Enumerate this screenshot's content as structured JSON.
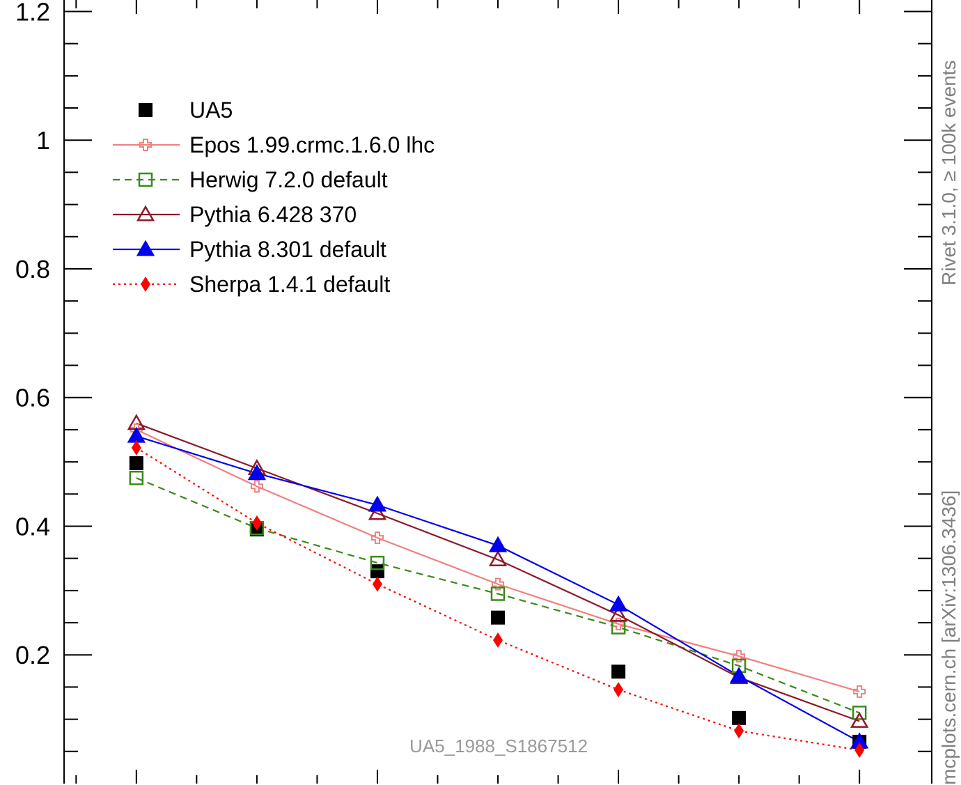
{
  "chart_data": {
    "type": "line",
    "title": "",
    "xlabel": "",
    "ylabel": "",
    "analysis_id": "UA5_1988_S1867512",
    "x": [
      1,
      2,
      3,
      4,
      5,
      6,
      7
    ],
    "xlim": [
      0.4,
      7.6
    ],
    "ylim": [
      0,
      1.22
    ],
    "y_ticks": [
      0.2,
      0.4,
      0.6,
      0.8,
      1,
      1.2
    ],
    "y_tick_labels": [
      "0.2",
      "0.4",
      "0.6",
      "0.8",
      "1",
      "1.2"
    ],
    "grid": false,
    "legend_position": "top-left",
    "series": [
      {
        "name": "UA5",
        "style": "data",
        "marker": "square-filled",
        "color": "#000000",
        "values": [
          0.498,
          0.395,
          0.33,
          0.258,
          0.174,
          0.102,
          0.065
        ]
      },
      {
        "name": "Epos 1.99.crmc.1.6.0 lhc",
        "style": "solid",
        "marker": "cross-open",
        "color": "#f08080",
        "values": [
          0.55,
          0.462,
          0.382,
          0.31,
          0.248,
          0.198,
          0.143
        ]
      },
      {
        "name": "Herwig 7.2.0 default",
        "style": "dashed",
        "marker": "square-open",
        "color": "#3a8a18",
        "values": [
          0.475,
          0.397,
          0.343,
          0.295,
          0.243,
          0.183,
          0.11
        ]
      },
      {
        "name": "Pythia 6.428 370",
        "style": "solid",
        "marker": "triangle-open",
        "color": "#8b1a2a",
        "values": [
          0.56,
          0.49,
          0.42,
          0.348,
          0.262,
          0.165,
          0.097
        ]
      },
      {
        "name": "Pythia 8.301 default",
        "style": "solid",
        "marker": "triangle-filled",
        "color": "#0000ee",
        "values": [
          0.54,
          0.482,
          0.433,
          0.37,
          0.278,
          0.167,
          0.065
        ]
      },
      {
        "name": "Sherpa 1.4.1 default",
        "style": "dotted",
        "marker": "diamond-filled",
        "color": "#ff0000",
        "values": [
          0.522,
          0.405,
          0.31,
          0.223,
          0.146,
          0.082,
          0.052
        ]
      }
    ]
  },
  "side_text": {
    "right_top": "Rivet 3.1.0, ≥ 100k events",
    "right_bottom": "mcplots.cern.ch [arXiv:1306.3436]"
  }
}
